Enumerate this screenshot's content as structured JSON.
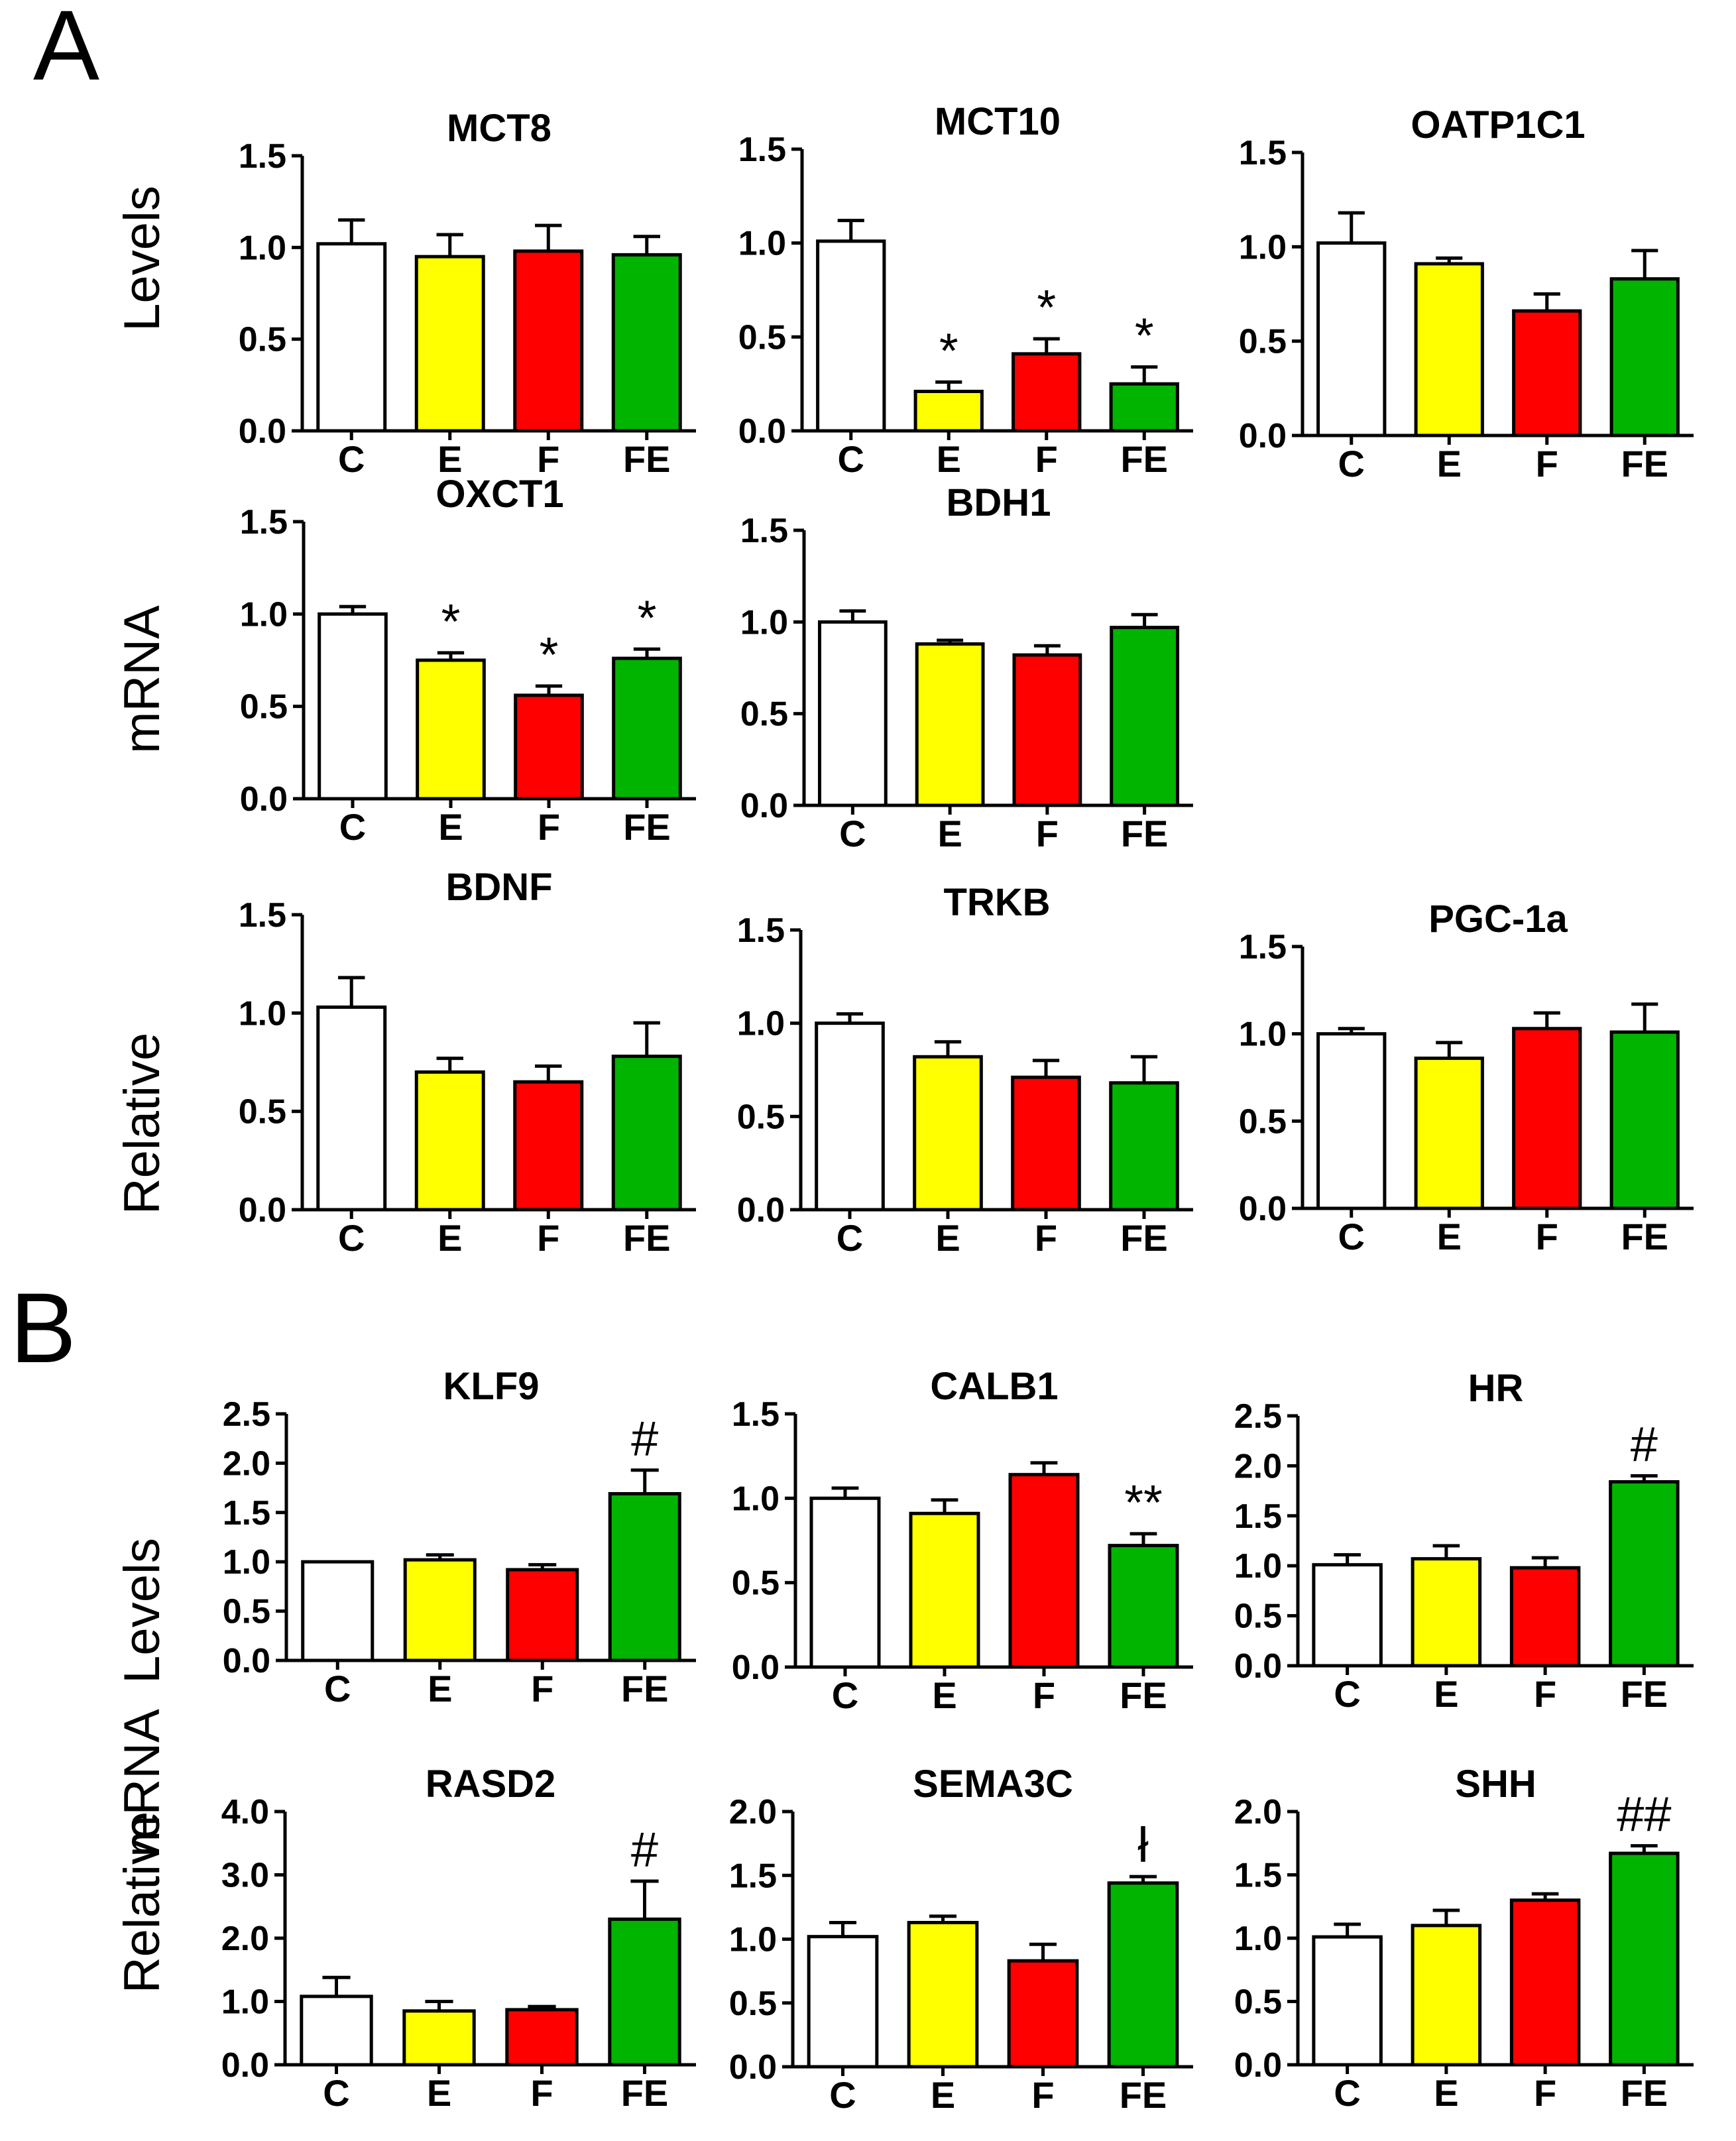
{
  "panels": [
    {
      "letter": "A",
      "ylabel_words": [
        "Relative",
        "mRNA",
        "Levels"
      ]
    },
    {
      "letter": "B",
      "ylabel_words": [
        "Relative",
        "mRNA",
        "Levels"
      ]
    }
  ],
  "chart_data": [
    {
      "id": "MCT8",
      "panel": "A",
      "type": "bar",
      "title": "MCT8",
      "categories": [
        "C",
        "E",
        "F",
        "FE"
      ],
      "values": [
        1.02,
        0.95,
        0.98,
        0.96
      ],
      "errors": [
        0.13,
        0.12,
        0.14,
        0.1
      ],
      "annotations": [
        "",
        "",
        "",
        ""
      ],
      "ylim": [
        0,
        1.5
      ],
      "yticks": [
        "0.0",
        "0.5",
        "1.0",
        "1.5"
      ]
    },
    {
      "id": "MCT10",
      "panel": "A",
      "type": "bar",
      "title": "MCT10",
      "categories": [
        "C",
        "E",
        "F",
        "FE"
      ],
      "values": [
        1.01,
        0.21,
        0.41,
        0.25
      ],
      "errors": [
        0.11,
        0.05,
        0.08,
        0.09
      ],
      "annotations": [
        "",
        "*",
        "*",
        "*"
      ],
      "ylim": [
        0,
        1.5
      ],
      "yticks": [
        "0.0",
        "0.5",
        "1.0",
        "1.5"
      ]
    },
    {
      "id": "OATP1C1",
      "panel": "A",
      "type": "bar",
      "title": "OATP1C1",
      "categories": [
        "C",
        "E",
        "F",
        "FE"
      ],
      "values": [
        1.02,
        0.91,
        0.66,
        0.83
      ],
      "errors": [
        0.16,
        0.03,
        0.09,
        0.15
      ],
      "annotations": [
        "",
        "",
        "",
        ""
      ],
      "ylim": [
        0,
        1.5
      ],
      "yticks": [
        "0.0",
        "0.5",
        "1.0",
        "1.5"
      ]
    },
    {
      "id": "OXCT1",
      "panel": "A",
      "type": "bar",
      "title": "OXCT1",
      "categories": [
        "C",
        "E",
        "F",
        "FE"
      ],
      "values": [
        1.0,
        0.75,
        0.56,
        0.76
      ],
      "errors": [
        0.04,
        0.04,
        0.05,
        0.05
      ],
      "annotations": [
        "",
        "*",
        "*",
        "*"
      ],
      "ylim": [
        0,
        1.5
      ],
      "yticks": [
        "0.0",
        "0.5",
        "1.0",
        "1.5"
      ]
    },
    {
      "id": "BDH1",
      "panel": "A",
      "type": "bar",
      "title": "BDH1",
      "categories": [
        "C",
        "E",
        "F",
        "FE"
      ],
      "values": [
        1.0,
        0.88,
        0.82,
        0.97
      ],
      "errors": [
        0.06,
        0.02,
        0.05,
        0.07
      ],
      "annotations": [
        "",
        "",
        "",
        ""
      ],
      "ylim": [
        0,
        1.5
      ],
      "yticks": [
        "0.0",
        "0.5",
        "1.0",
        "1.5"
      ]
    },
    {
      "id": "BDNF",
      "panel": "A",
      "type": "bar",
      "title": "BDNF",
      "categories": [
        "C",
        "E",
        "F",
        "FE"
      ],
      "values": [
        1.03,
        0.7,
        0.65,
        0.78
      ],
      "errors": [
        0.15,
        0.07,
        0.08,
        0.17
      ],
      "annotations": [
        "",
        "",
        "",
        ""
      ],
      "ylim": [
        0,
        1.5
      ],
      "yticks": [
        "0.0",
        "0.5",
        "1.0",
        "1.5"
      ]
    },
    {
      "id": "TRKB",
      "panel": "A",
      "type": "bar",
      "title": "TRKB",
      "categories": [
        "C",
        "E",
        "F",
        "FE"
      ],
      "values": [
        1.0,
        0.82,
        0.71,
        0.68
      ],
      "errors": [
        0.05,
        0.08,
        0.09,
        0.14
      ],
      "annotations": [
        "",
        "",
        "",
        ""
      ],
      "ylim": [
        0,
        1.5
      ],
      "yticks": [
        "0.0",
        "0.5",
        "1.0",
        "1.5"
      ]
    },
    {
      "id": "PGC-1a",
      "panel": "A",
      "type": "bar",
      "title": "PGC-1a",
      "categories": [
        "C",
        "E",
        "F",
        "FE"
      ],
      "values": [
        1.0,
        0.86,
        1.03,
        1.01
      ],
      "errors": [
        0.03,
        0.09,
        0.09,
        0.16
      ],
      "annotations": [
        "",
        "",
        "",
        ""
      ],
      "ylim": [
        0,
        1.5
      ],
      "yticks": [
        "0.0",
        "0.5",
        "1.0",
        "1.5"
      ]
    },
    {
      "id": "KLF9",
      "panel": "B",
      "type": "bar",
      "title": "KLF9",
      "categories": [
        "C",
        "E",
        "F",
        "FE"
      ],
      "values": [
        1.0,
        1.02,
        0.92,
        1.69
      ],
      "errors": [
        0.0,
        0.05,
        0.05,
        0.24
      ],
      "annotations": [
        "",
        "",
        "",
        "#"
      ],
      "ylim": [
        0,
        2.5
      ],
      "yticks": [
        "0.0",
        "0.5",
        "1.0",
        "1.5",
        "2.0",
        "2.5"
      ]
    },
    {
      "id": "CALB1",
      "panel": "B",
      "type": "bar",
      "title": "CALB1",
      "categories": [
        "C",
        "E",
        "F",
        "FE"
      ],
      "values": [
        1.0,
        0.91,
        1.14,
        0.72
      ],
      "errors": [
        0.06,
        0.08,
        0.07,
        0.07
      ],
      "annotations": [
        "",
        "",
        "",
        "**"
      ],
      "ylim": [
        0,
        1.5
      ],
      "yticks": [
        "0.0",
        "0.5",
        "1.0",
        "1.5"
      ]
    },
    {
      "id": "HR",
      "panel": "B",
      "type": "bar",
      "title": "HR",
      "categories": [
        "C",
        "E",
        "F",
        "FE"
      ],
      "values": [
        1.01,
        1.07,
        0.98,
        1.84
      ],
      "errors": [
        0.1,
        0.13,
        0.1,
        0.06
      ],
      "annotations": [
        "",
        "",
        "",
        "#"
      ],
      "ylim": [
        0,
        2.5
      ],
      "yticks": [
        "0.0",
        "0.5",
        "1.0",
        "1.5",
        "2.0",
        "2.5"
      ]
    },
    {
      "id": "RASD2",
      "panel": "B",
      "type": "bar",
      "title": "RASD2",
      "categories": [
        "C",
        "E",
        "F",
        "FE"
      ],
      "values": [
        1.08,
        0.85,
        0.87,
        2.3
      ],
      "errors": [
        0.3,
        0.15,
        0.05,
        0.6
      ],
      "annotations": [
        "",
        "",
        "",
        "#"
      ],
      "ylim": [
        0,
        4.0
      ],
      "yticks": [
        "0.0",
        "1.0",
        "2.0",
        "3.0",
        "4.0"
      ]
    },
    {
      "id": "SEMA3C",
      "panel": "B",
      "type": "bar",
      "title": "SEMA3C",
      "categories": [
        "C",
        "E",
        "F",
        "FE"
      ],
      "values": [
        1.02,
        1.13,
        0.83,
        1.44
      ],
      "errors": [
        0.11,
        0.05,
        0.13,
        0.05
      ],
      "annotations": [
        "",
        "",
        "",
        "ł"
      ],
      "ylim": [
        0,
        2.0
      ],
      "yticks": [
        "0.0",
        "0.5",
        "1.0",
        "1.5",
        "2.0"
      ]
    },
    {
      "id": "SHH",
      "panel": "B",
      "type": "bar",
      "title": "SHH",
      "categories": [
        "C",
        "E",
        "F",
        "FE"
      ],
      "values": [
        1.01,
        1.1,
        1.3,
        1.67
      ],
      "errors": [
        0.1,
        0.12,
        0.05,
        0.06
      ],
      "annotations": [
        "",
        "",
        "",
        "##"
      ],
      "ylim": [
        0,
        2.0
      ],
      "yticks": [
        "0.0",
        "0.5",
        "1.0",
        "1.5",
        "2.0"
      ]
    }
  ],
  "colors": {
    "C": "#ffffff",
    "E": "#ffff00",
    "F": "#ff0000",
    "FE": "#00b400",
    "stroke": "#000000"
  }
}
